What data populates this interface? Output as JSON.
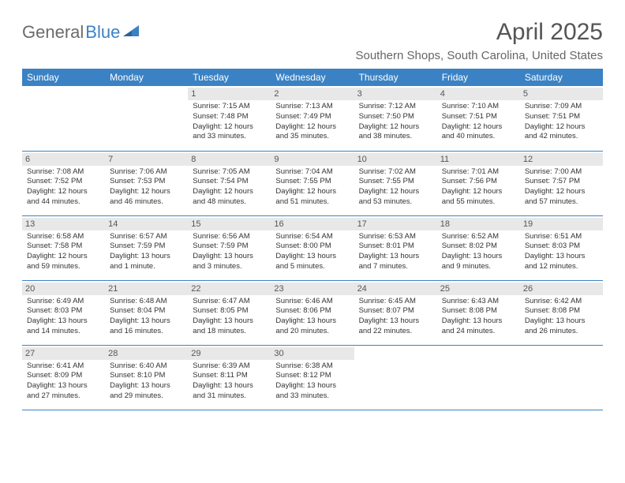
{
  "logo": {
    "text1": "General",
    "text2": "Blue"
  },
  "title": "April 2025",
  "location": "Southern Shops, South Carolina, United States",
  "colors": {
    "header_bg": "#3b82c4",
    "header_text": "#ffffff",
    "daynum_bg": "#e8e8e8",
    "border": "#3b82c4",
    "logo_gray": "#6b6b6b",
    "logo_blue": "#3b82c4"
  },
  "day_headers": [
    "Sunday",
    "Monday",
    "Tuesday",
    "Wednesday",
    "Thursday",
    "Friday",
    "Saturday"
  ],
  "weeks": [
    [
      null,
      null,
      {
        "n": "1",
        "sr": "Sunrise: 7:15 AM",
        "ss": "Sunset: 7:48 PM",
        "d1": "Daylight: 12 hours",
        "d2": "and 33 minutes."
      },
      {
        "n": "2",
        "sr": "Sunrise: 7:13 AM",
        "ss": "Sunset: 7:49 PM",
        "d1": "Daylight: 12 hours",
        "d2": "and 35 minutes."
      },
      {
        "n": "3",
        "sr": "Sunrise: 7:12 AM",
        "ss": "Sunset: 7:50 PM",
        "d1": "Daylight: 12 hours",
        "d2": "and 38 minutes."
      },
      {
        "n": "4",
        "sr": "Sunrise: 7:10 AM",
        "ss": "Sunset: 7:51 PM",
        "d1": "Daylight: 12 hours",
        "d2": "and 40 minutes."
      },
      {
        "n": "5",
        "sr": "Sunrise: 7:09 AM",
        "ss": "Sunset: 7:51 PM",
        "d1": "Daylight: 12 hours",
        "d2": "and 42 minutes."
      }
    ],
    [
      {
        "n": "6",
        "sr": "Sunrise: 7:08 AM",
        "ss": "Sunset: 7:52 PM",
        "d1": "Daylight: 12 hours",
        "d2": "and 44 minutes."
      },
      {
        "n": "7",
        "sr": "Sunrise: 7:06 AM",
        "ss": "Sunset: 7:53 PM",
        "d1": "Daylight: 12 hours",
        "d2": "and 46 minutes."
      },
      {
        "n": "8",
        "sr": "Sunrise: 7:05 AM",
        "ss": "Sunset: 7:54 PM",
        "d1": "Daylight: 12 hours",
        "d2": "and 48 minutes."
      },
      {
        "n": "9",
        "sr": "Sunrise: 7:04 AM",
        "ss": "Sunset: 7:55 PM",
        "d1": "Daylight: 12 hours",
        "d2": "and 51 minutes."
      },
      {
        "n": "10",
        "sr": "Sunrise: 7:02 AM",
        "ss": "Sunset: 7:55 PM",
        "d1": "Daylight: 12 hours",
        "d2": "and 53 minutes."
      },
      {
        "n": "11",
        "sr": "Sunrise: 7:01 AM",
        "ss": "Sunset: 7:56 PM",
        "d1": "Daylight: 12 hours",
        "d2": "and 55 minutes."
      },
      {
        "n": "12",
        "sr": "Sunrise: 7:00 AM",
        "ss": "Sunset: 7:57 PM",
        "d1": "Daylight: 12 hours",
        "d2": "and 57 minutes."
      }
    ],
    [
      {
        "n": "13",
        "sr": "Sunrise: 6:58 AM",
        "ss": "Sunset: 7:58 PM",
        "d1": "Daylight: 12 hours",
        "d2": "and 59 minutes."
      },
      {
        "n": "14",
        "sr": "Sunrise: 6:57 AM",
        "ss": "Sunset: 7:59 PM",
        "d1": "Daylight: 13 hours",
        "d2": "and 1 minute."
      },
      {
        "n": "15",
        "sr": "Sunrise: 6:56 AM",
        "ss": "Sunset: 7:59 PM",
        "d1": "Daylight: 13 hours",
        "d2": "and 3 minutes."
      },
      {
        "n": "16",
        "sr": "Sunrise: 6:54 AM",
        "ss": "Sunset: 8:00 PM",
        "d1": "Daylight: 13 hours",
        "d2": "and 5 minutes."
      },
      {
        "n": "17",
        "sr": "Sunrise: 6:53 AM",
        "ss": "Sunset: 8:01 PM",
        "d1": "Daylight: 13 hours",
        "d2": "and 7 minutes."
      },
      {
        "n": "18",
        "sr": "Sunrise: 6:52 AM",
        "ss": "Sunset: 8:02 PM",
        "d1": "Daylight: 13 hours",
        "d2": "and 9 minutes."
      },
      {
        "n": "19",
        "sr": "Sunrise: 6:51 AM",
        "ss": "Sunset: 8:03 PM",
        "d1": "Daylight: 13 hours",
        "d2": "and 12 minutes."
      }
    ],
    [
      {
        "n": "20",
        "sr": "Sunrise: 6:49 AM",
        "ss": "Sunset: 8:03 PM",
        "d1": "Daylight: 13 hours",
        "d2": "and 14 minutes."
      },
      {
        "n": "21",
        "sr": "Sunrise: 6:48 AM",
        "ss": "Sunset: 8:04 PM",
        "d1": "Daylight: 13 hours",
        "d2": "and 16 minutes."
      },
      {
        "n": "22",
        "sr": "Sunrise: 6:47 AM",
        "ss": "Sunset: 8:05 PM",
        "d1": "Daylight: 13 hours",
        "d2": "and 18 minutes."
      },
      {
        "n": "23",
        "sr": "Sunrise: 6:46 AM",
        "ss": "Sunset: 8:06 PM",
        "d1": "Daylight: 13 hours",
        "d2": "and 20 minutes."
      },
      {
        "n": "24",
        "sr": "Sunrise: 6:45 AM",
        "ss": "Sunset: 8:07 PM",
        "d1": "Daylight: 13 hours",
        "d2": "and 22 minutes."
      },
      {
        "n": "25",
        "sr": "Sunrise: 6:43 AM",
        "ss": "Sunset: 8:08 PM",
        "d1": "Daylight: 13 hours",
        "d2": "and 24 minutes."
      },
      {
        "n": "26",
        "sr": "Sunrise: 6:42 AM",
        "ss": "Sunset: 8:08 PM",
        "d1": "Daylight: 13 hours",
        "d2": "and 26 minutes."
      }
    ],
    [
      {
        "n": "27",
        "sr": "Sunrise: 6:41 AM",
        "ss": "Sunset: 8:09 PM",
        "d1": "Daylight: 13 hours",
        "d2": "and 27 minutes."
      },
      {
        "n": "28",
        "sr": "Sunrise: 6:40 AM",
        "ss": "Sunset: 8:10 PM",
        "d1": "Daylight: 13 hours",
        "d2": "and 29 minutes."
      },
      {
        "n": "29",
        "sr": "Sunrise: 6:39 AM",
        "ss": "Sunset: 8:11 PM",
        "d1": "Daylight: 13 hours",
        "d2": "and 31 minutes."
      },
      {
        "n": "30",
        "sr": "Sunrise: 6:38 AM",
        "ss": "Sunset: 8:12 PM",
        "d1": "Daylight: 13 hours",
        "d2": "and 33 minutes."
      },
      null,
      null,
      null
    ]
  ]
}
